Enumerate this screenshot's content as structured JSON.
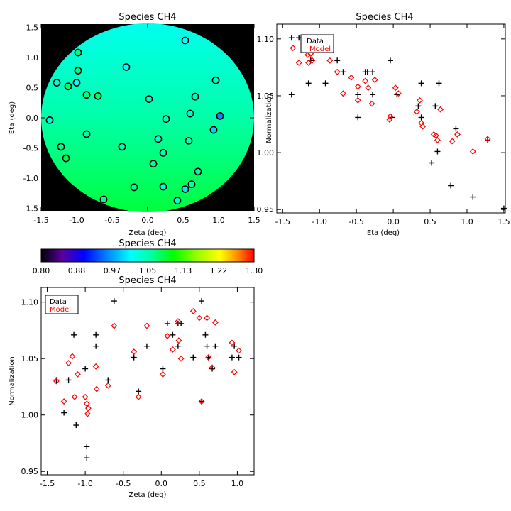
{
  "chart_data": [
    {
      "id": "map",
      "type": "scatter",
      "title": "Species CH4",
      "xlabel": "Zeta (deg)",
      "ylabel": "Eta (deg)",
      "xlim": [
        -1.5,
        1.5
      ],
      "ylim": [
        -1.55,
        1.55
      ],
      "xticks": [
        "-1.5",
        "-1.0",
        "-0.5",
        "0.0",
        "0.5",
        "1.0",
        "1.5"
      ],
      "yticks": [
        "-1.5",
        "-1.0",
        "-0.5",
        "0.0",
        "0.5",
        "1.0",
        "1.5"
      ],
      "background_field": "circular map of normalization colored by colorbar, cyan at top to green at bottom",
      "points": [
        {
          "x": 0.53,
          "y": 1.28,
          "v": 1.01
        },
        {
          "x": -0.98,
          "y": 1.08,
          "v": 1.07
        },
        {
          "x": -0.3,
          "y": 0.84,
          "v": 1.01
        },
        {
          "x": -0.98,
          "y": 0.78,
          "v": 1.07
        },
        {
          "x": -1.28,
          "y": 0.58,
          "v": 1.03
        },
        {
          "x": -1.0,
          "y": 0.58,
          "v": 1.01
        },
        {
          "x": -1.12,
          "y": 0.52,
          "v": 1.08
        },
        {
          "x": 0.96,
          "y": 0.62,
          "v": 1.05
        },
        {
          "x": -0.86,
          "y": 0.38,
          "v": 1.07
        },
        {
          "x": -0.7,
          "y": 0.36,
          "v": 1.08
        },
        {
          "x": 0.67,
          "y": 0.35,
          "v": 1.04
        },
        {
          "x": 0.02,
          "y": 0.31,
          "v": 1.04
        },
        {
          "x": 0.6,
          "y": 0.07,
          "v": 1.04
        },
        {
          "x": 1.02,
          "y": 0.03,
          "v": 0.96
        },
        {
          "x": -1.38,
          "y": -0.04,
          "v": 1.03
        },
        {
          "x": 0.26,
          "y": -0.02,
          "v": 1.05
        },
        {
          "x": 0.93,
          "y": -0.2,
          "v": 0.99
        },
        {
          "x": -0.86,
          "y": -0.27,
          "v": 1.06
        },
        {
          "x": 0.15,
          "y": -0.35,
          "v": 1.03
        },
        {
          "x": 0.58,
          "y": -0.38,
          "v": 1.05
        },
        {
          "x": -1.22,
          "y": -0.48,
          "v": 1.07
        },
        {
          "x": -0.36,
          "y": -0.48,
          "v": 1.05
        },
        {
          "x": 0.22,
          "y": -0.58,
          "v": 1.05
        },
        {
          "x": -1.15,
          "y": -0.67,
          "v": 1.09
        },
        {
          "x": 0.08,
          "y": -0.76,
          "v": 1.06
        },
        {
          "x": 0.71,
          "y": -0.89,
          "v": 1.06
        },
        {
          "x": -0.19,
          "y": -1.15,
          "v": 1.06
        },
        {
          "x": 0.22,
          "y": -1.14,
          "v": 1.03
        },
        {
          "x": 0.62,
          "y": -1.1,
          "v": 1.06
        },
        {
          "x": 0.53,
          "y": -1.18,
          "v": 1.0
        },
        {
          "x": -0.62,
          "y": -1.35,
          "v": 1.06
        },
        {
          "x": 0.42,
          "y": -1.37,
          "v": 1.03
        }
      ]
    },
    {
      "id": "colorbar",
      "type": "heatmap",
      "title": "Species CH4",
      "range": [
        0.8,
        1.3
      ],
      "ticks": [
        "0.80",
        "0.88",
        "0.97",
        "1.05",
        "1.13",
        "1.22",
        "1.30"
      ]
    },
    {
      "id": "eta_plot",
      "type": "scatter",
      "title": "Species CH4",
      "xlabel": "Eta (deg)",
      "ylabel": "Normalization",
      "xlim": [
        -1.58,
        1.52
      ],
      "ylim": [
        0.947,
        1.113
      ],
      "xticks": [
        "-1.5",
        "-1.0",
        "-0.5",
        "0.0",
        "0.5",
        "1.0",
        "1.5"
      ],
      "yticks": [
        "0.95",
        "1.00",
        "1.05",
        "1.10"
      ],
      "legend": [
        "Data",
        "Model"
      ],
      "legend_loc": "top-left",
      "series": [
        {
          "name": "Data",
          "color": "#000000",
          "marker": "plus",
          "points": [
            [
              -1.38,
              1.101
            ],
            [
              -1.28,
              1.101
            ],
            [
              -1.38,
              1.051
            ],
            [
              -1.15,
              1.061
            ],
            [
              -1.12,
              1.081
            ],
            [
              -1.12,
              1.081
            ],
            [
              -0.92,
              1.061
            ],
            [
              -0.76,
              1.081
            ],
            [
              -0.68,
              1.071
            ],
            [
              -0.48,
              1.031
            ],
            [
              -0.48,
              1.051
            ],
            [
              -0.38,
              1.071
            ],
            [
              -0.35,
              1.071
            ],
            [
              -0.28,
              1.051
            ],
            [
              -0.28,
              1.071
            ],
            [
              -0.04,
              1.081
            ],
            [
              -0.02,
              1.031
            ],
            [
              0.05,
              1.051
            ],
            [
              0.34,
              1.041
            ],
            [
              0.38,
              1.061
            ],
            [
              0.38,
              1.031
            ],
            [
              0.52,
              0.991
            ],
            [
              0.57,
              1.041
            ],
            [
              0.62,
              1.061
            ],
            [
              0.6,
              1.001
            ],
            [
              0.78,
              0.971
            ],
            [
              0.85,
              1.021
            ],
            [
              1.08,
              0.961
            ],
            [
              1.28,
              1.011
            ],
            [
              1.5,
              0.951
            ]
          ]
        },
        {
          "name": "Model",
          "color": "#ff0000",
          "marker": "diamond",
          "points": [
            [
              -1.36,
              1.092
            ],
            [
              -1.28,
              1.079
            ],
            [
              -1.16,
              1.086
            ],
            [
              -1.15,
              1.079
            ],
            [
              -1.12,
              1.087
            ],
            [
              -1.1,
              1.081
            ],
            [
              -0.86,
              1.081
            ],
            [
              -0.76,
              1.071
            ],
            [
              -0.68,
              1.052
            ],
            [
              -0.57,
              1.066
            ],
            [
              -0.48,
              1.058
            ],
            [
              -0.48,
              1.046
            ],
            [
              -0.38,
              1.063
            ],
            [
              -0.34,
              1.057
            ],
            [
              -0.29,
              1.043
            ],
            [
              -0.25,
              1.064
            ],
            [
              -0.05,
              1.029
            ],
            [
              -0.04,
              1.032
            ],
            [
              0.03,
              1.057
            ],
            [
              0.07,
              1.052
            ],
            [
              0.32,
              1.036
            ],
            [
              0.36,
              1.046
            ],
            [
              0.38,
              1.026
            ],
            [
              0.4,
              1.023
            ],
            [
              0.55,
              1.016
            ],
            [
              0.58,
              1.015
            ],
            [
              0.6,
              1.011
            ],
            [
              0.64,
              1.038
            ],
            [
              0.8,
              1.01
            ],
            [
              0.87,
              1.016
            ],
            [
              1.08,
              1.001
            ],
            [
              1.28,
              1.012
            ]
          ]
        }
      ]
    },
    {
      "id": "zeta_plot",
      "type": "scatter",
      "title": "Species CH4",
      "xlabel": "Zeta (deg)",
      "ylabel": "Normalization",
      "xlim": [
        -1.58,
        1.22
      ],
      "ylim": [
        0.947,
        1.113
      ],
      "xticks": [
        "-1.5",
        "-1.0",
        "-0.5",
        "0.0",
        "0.5",
        "1.0"
      ],
      "yticks": [
        "0.95",
        "1.00",
        "1.05",
        "1.10"
      ],
      "legend": [
        "Data",
        "Model"
      ],
      "legend_loc": "top-left",
      "series": [
        {
          "name": "Data",
          "color": "#000000",
          "marker": "plus",
          "points": [
            [
              -1.38,
              1.031
            ],
            [
              -1.28,
              1.002
            ],
            [
              -1.22,
              1.031
            ],
            [
              -1.15,
              1.071
            ],
            [
              -1.12,
              0.991
            ],
            [
              -1.0,
              1.041
            ],
            [
              -0.98,
              0.972
            ],
            [
              -0.98,
              0.962
            ],
            [
              -0.86,
              1.071
            ],
            [
              -0.86,
              1.061
            ],
            [
              -0.7,
              1.031
            ],
            [
              -0.62,
              1.101
            ],
            [
              -0.36,
              1.051
            ],
            [
              -0.3,
              1.021
            ],
            [
              -0.19,
              1.061
            ],
            [
              0.02,
              1.041
            ],
            [
              0.08,
              1.081
            ],
            [
              0.15,
              1.071
            ],
            [
              0.22,
              1.081
            ],
            [
              0.22,
              1.061
            ],
            [
              0.26,
              1.081
            ],
            [
              0.42,
              1.051
            ],
            [
              0.53,
              1.101
            ],
            [
              0.53,
              1.012
            ],
            [
              0.58,
              1.071
            ],
            [
              0.6,
              1.061
            ],
            [
              0.62,
              1.051
            ],
            [
              0.67,
              1.041
            ],
            [
              0.71,
              1.061
            ],
            [
              0.93,
              1.051
            ],
            [
              0.96,
              1.061
            ],
            [
              1.02,
              1.051
            ]
          ]
        },
        {
          "name": "Model",
          "color": "#ff0000",
          "marker": "diamond",
          "points": [
            [
              -1.38,
              1.03
            ],
            [
              -1.28,
              1.012
            ],
            [
              -1.22,
              1.046
            ],
            [
              -1.17,
              1.052
            ],
            [
              -1.14,
              1.016
            ],
            [
              -1.1,
              1.036
            ],
            [
              -1.0,
              1.016
            ],
            [
              -0.98,
              1.01
            ],
            [
              -0.97,
              1.001
            ],
            [
              -0.96,
              1.006
            ],
            [
              -0.86,
              1.043
            ],
            [
              -0.85,
              1.023
            ],
            [
              -0.7,
              1.026
            ],
            [
              -0.62,
              1.079
            ],
            [
              -0.36,
              1.056
            ],
            [
              -0.3,
              1.016
            ],
            [
              -0.19,
              1.079
            ],
            [
              0.02,
              1.036
            ],
            [
              0.08,
              1.07
            ],
            [
              0.15,
              1.058
            ],
            [
              0.22,
              1.083
            ],
            [
              0.23,
              1.066
            ],
            [
              0.26,
              1.05
            ],
            [
              0.42,
              1.092
            ],
            [
              0.5,
              1.086
            ],
            [
              0.53,
              1.012
            ],
            [
              0.6,
              1.086
            ],
            [
              0.62,
              1.051
            ],
            [
              0.67,
              1.042
            ],
            [
              0.71,
              1.082
            ],
            [
              0.93,
              1.064
            ],
            [
              0.96,
              1.038
            ],
            [
              1.02,
              1.057
            ]
          ]
        }
      ]
    }
  ]
}
